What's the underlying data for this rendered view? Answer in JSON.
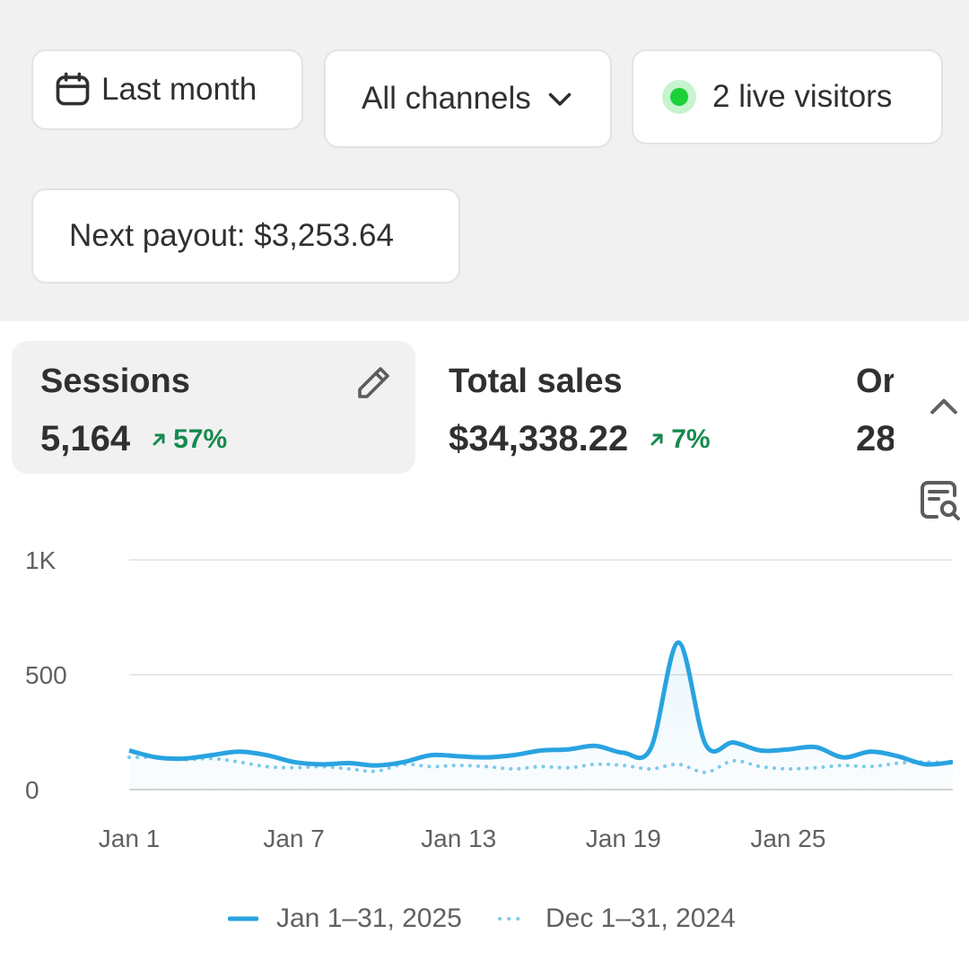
{
  "filters": {
    "date_range_label": "Last month",
    "channel_label": "All channels",
    "live_visitors_label": "2 live visitors",
    "payout_label": "Next payout: $3,253.64"
  },
  "metrics": [
    {
      "title": "Sessions",
      "value": "5,164",
      "change": "57%",
      "active": true
    },
    {
      "title": "Total sales",
      "value": "$34,338.22",
      "change": "7%",
      "active": false
    },
    {
      "title": "Or",
      "value": "28",
      "change": "",
      "active": false
    }
  ],
  "icons": {
    "date": "calendar-icon",
    "channel": "chevron-down-icon",
    "live": "live-dot-icon",
    "edit": "pencil-icon",
    "trend": "arrow-up-right-icon",
    "collapse": "chevron-up-icon",
    "report": "report-search-icon"
  },
  "colors": {
    "accent": "#29a3e0",
    "previous": "#7fcaec",
    "positive": "#158a4e",
    "live": "#1bd13a"
  },
  "chart_data": {
    "type": "line",
    "x": [
      "Jan 1",
      "Jan 2",
      "Jan 3",
      "Jan 4",
      "Jan 5",
      "Jan 6",
      "Jan 7",
      "Jan 8",
      "Jan 9",
      "Jan 10",
      "Jan 11",
      "Jan 12",
      "Jan 13",
      "Jan 14",
      "Jan 15",
      "Jan 16",
      "Jan 17",
      "Jan 18",
      "Jan 19",
      "Jan 20",
      "Jan 21",
      "Jan 22",
      "Jan 23",
      "Jan 24",
      "Jan 25",
      "Jan 26",
      "Jan 27",
      "Jan 28",
      "Jan 29",
      "Jan 30",
      "Jan 31"
    ],
    "x_tick_labels": [
      "Jan 1",
      "Jan 7",
      "Jan 13",
      "Jan 19",
      "Jan 25"
    ],
    "y_tick_labels": [
      "0",
      "500",
      "1K"
    ],
    "ylim": [
      0,
      1000
    ],
    "series": [
      {
        "name": "Jan 1–31, 2025",
        "style": "solid",
        "values": [
          170,
          140,
          135,
          150,
          165,
          150,
          120,
          110,
          115,
          105,
          120,
          150,
          145,
          140,
          150,
          170,
          175,
          190,
          160,
          180,
          640,
          195,
          205,
          170,
          175,
          185,
          140,
          165,
          145,
          110,
          120
        ]
      },
      {
        "name": "Dec 1–31, 2024",
        "style": "dotted",
        "values": [
          140,
          140,
          130,
          135,
          120,
          100,
          95,
          100,
          90,
          80,
          110,
          100,
          105,
          100,
          90,
          100,
          95,
          110,
          105,
          90,
          110,
          75,
          125,
          100,
          90,
          95,
          105,
          100,
          115,
          120,
          115
        ]
      }
    ],
    "legend_position": "bottom",
    "grid": true
  }
}
